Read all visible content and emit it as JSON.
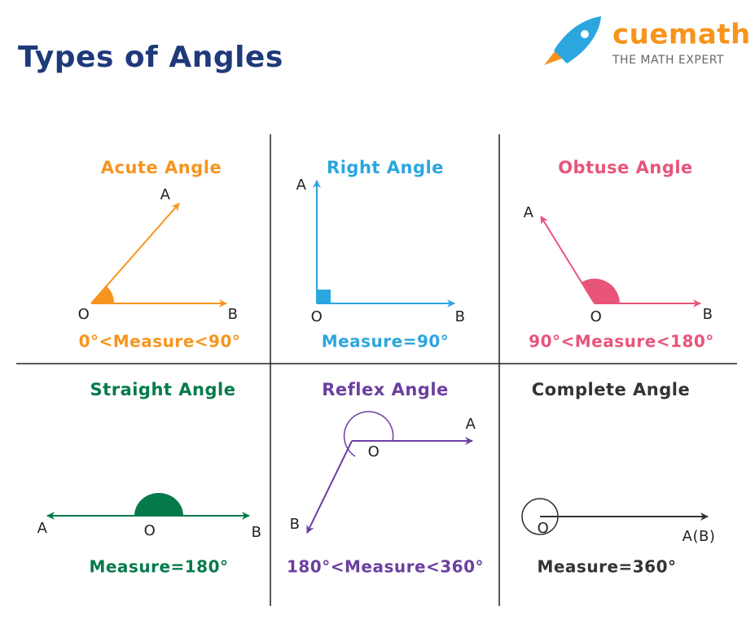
{
  "header": {
    "title": "Types of Angles",
    "brand": "cuemath",
    "tagline": "THE MATH EXPERT"
  },
  "panels": [
    {
      "title": "Acute Angle",
      "labels": [
        "A",
        "O",
        "B"
      ],
      "measure": "0°<Measure<90°"
    },
    {
      "title": "Right Angle",
      "labels": [
        "A",
        "O",
        "B"
      ],
      "measure": "Measure=90°"
    },
    {
      "title": "Obtuse Angle",
      "labels": [
        "A",
        "O",
        "B"
      ],
      "measure": "90°<Measure<180°"
    },
    {
      "title": "Straight Angle",
      "labels": [
        "A",
        "O",
        "B"
      ],
      "measure": "Measure=180°"
    },
    {
      "title": "Reflex Angle",
      "labels": [
        "A",
        "O",
        "B"
      ],
      "measure": "180°<Measure<360°"
    },
    {
      "title": "Complete Angle",
      "labels": [
        "O",
        "A(B)"
      ],
      "measure": "Measure=360°"
    }
  ]
}
